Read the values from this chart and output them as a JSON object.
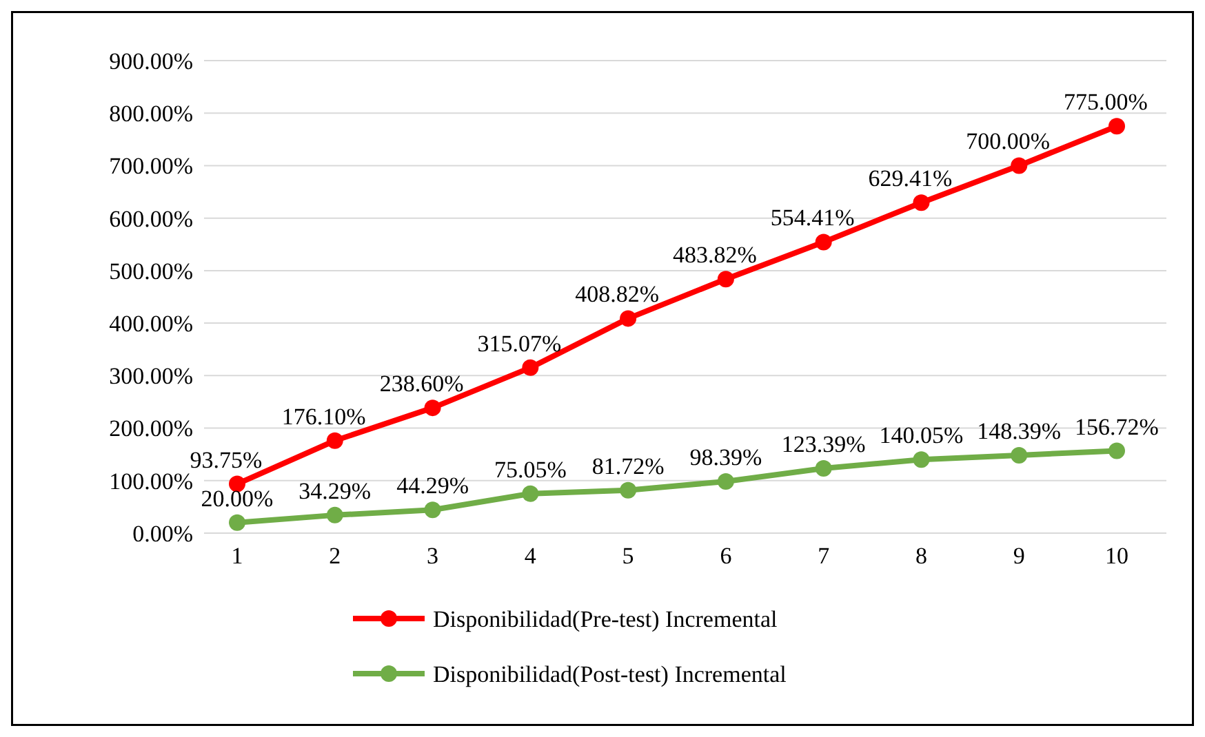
{
  "chart_data": {
    "type": "line",
    "categories": [
      "1",
      "2",
      "3",
      "4",
      "5",
      "6",
      "7",
      "8",
      "9",
      "10"
    ],
    "series": [
      {
        "name": "Disponibilidad(Pre-test) Incremental",
        "color": "#ff0000",
        "values": [
          93.75,
          176.1,
          238.6,
          315.07,
          408.82,
          483.82,
          554.41,
          629.41,
          700.0,
          775.0
        ],
        "value_labels": [
          "93.75%",
          "176.10%",
          "238.60%",
          "315.07%",
          "408.82%",
          "483.82%",
          "554.41%",
          "629.41%",
          "700.00%",
          "775.00%"
        ]
      },
      {
        "name": "Disponibilidad(Post-test) Incremental",
        "color": "#70ad47",
        "values": [
          20.0,
          34.29,
          44.29,
          75.05,
          81.72,
          98.39,
          123.39,
          140.05,
          148.39,
          156.72
        ],
        "value_labels": [
          "20.00%",
          "34.29%",
          "44.29%",
          "75.05%",
          "81.72%",
          "98.39%",
          "123.39%",
          "140.05%",
          "148.39%",
          "156.72%"
        ]
      }
    ],
    "ylim": [
      0,
      900
    ],
    "yticks": [
      {
        "value": 0,
        "label": "0.00%"
      },
      {
        "value": 100,
        "label": "100.00%"
      },
      {
        "value": 200,
        "label": "200.00%"
      },
      {
        "value": 300,
        "label": "300.00%"
      },
      {
        "value": 400,
        "label": "400.00%"
      },
      {
        "value": 500,
        "label": "500.00%"
      },
      {
        "value": 600,
        "label": "600.00%"
      },
      {
        "value": 700,
        "label": "700.00%"
      },
      {
        "value": 800,
        "label": "800.00%"
      },
      {
        "value": 900,
        "label": "900.00%"
      }
    ],
    "grid": "y",
    "legend": "bottom",
    "marker": "circle",
    "line_style": "solid"
  }
}
